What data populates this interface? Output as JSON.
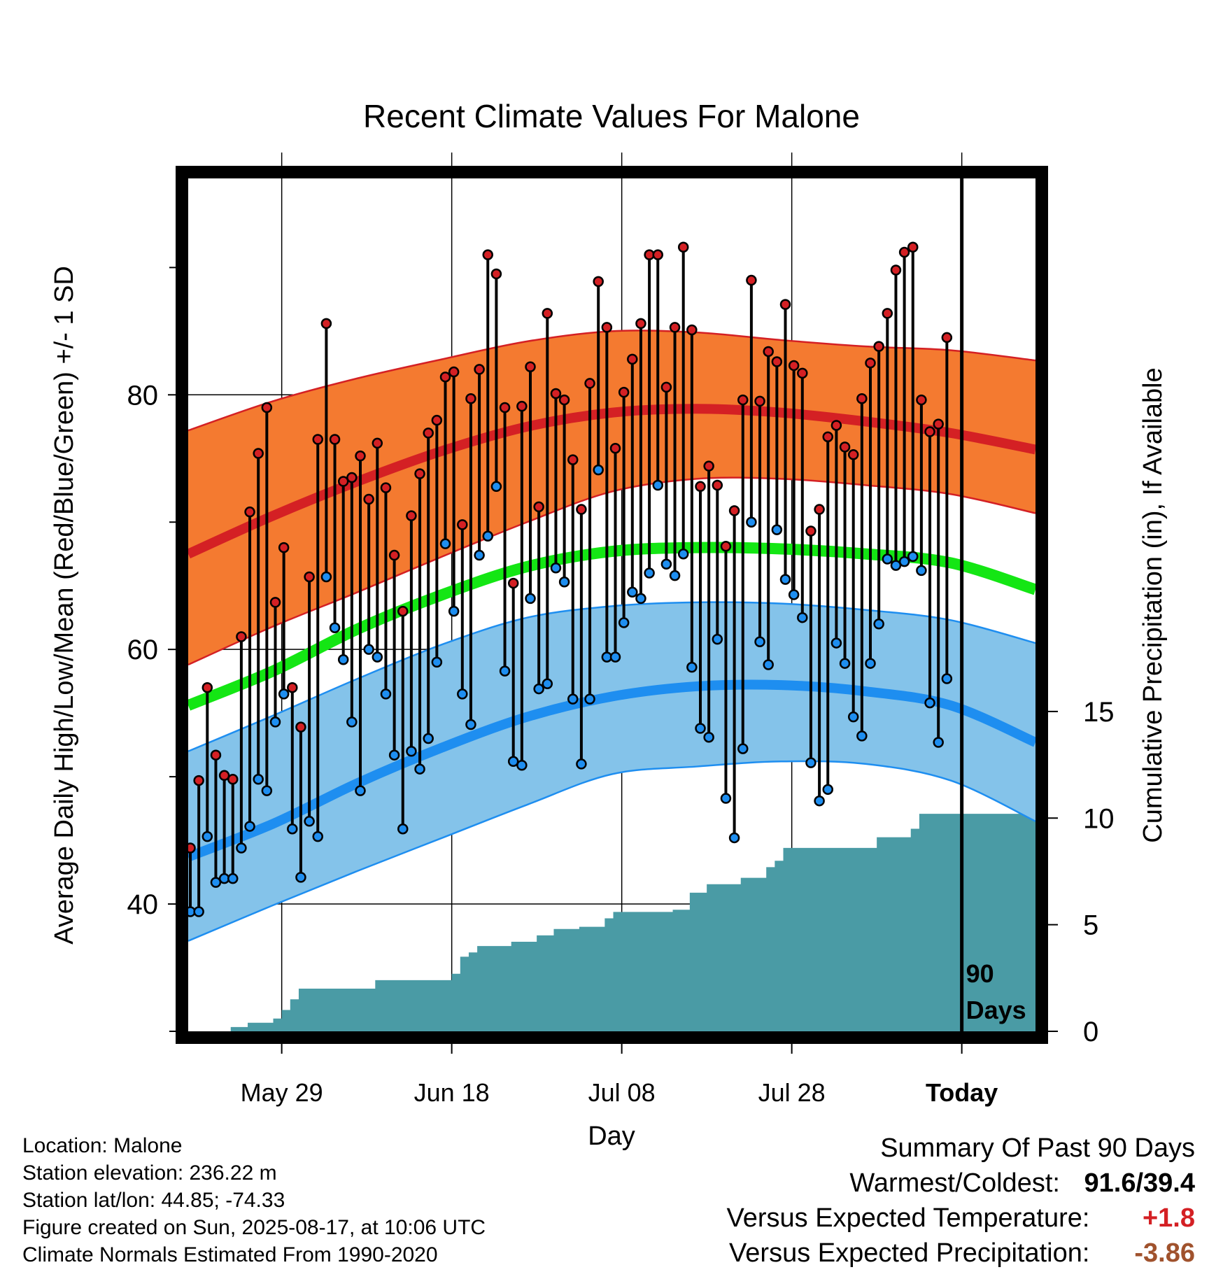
{
  "title": "Recent Climate Values For Malone",
  "y_left_label": "Average Daily High/Low/Mean (Red/Blue/Green) +/- 1 SD",
  "y_right_label": "Cumulative Precipitation (in), If Available",
  "x_label": "Day",
  "annotation": {
    "line1": "90",
    "line2": "Days"
  },
  "info": [
    "Location: Malone",
    "Station elevation: 236.22 m",
    "Station lat/lon: 44.85; -74.33",
    "Figure created on Sun, 2025-08-17, at 10:06 UTC",
    "Climate Normals Estimated From 1990-2020"
  ],
  "summary": {
    "heading": "Summary Of Past 90 Days",
    "warm_cold_label": "Warmest/Coldest:",
    "warm_cold_value": "91.6/39.4",
    "temp_label": "Versus Expected Temperature:",
    "temp_value": "+1.8",
    "precip_label": "Versus Expected Precipitation:",
    "precip_value": "-3.86"
  },
  "colors": {
    "high_band": "#f47a30",
    "high_line": "#d42024",
    "low_band": "#84c3ea",
    "low_line": "#1e8ef0",
    "mean_line": "#14e614",
    "precip": "#4a9ba5",
    "temp_value": "#d42024",
    "precip_value": "#a0522d"
  },
  "chart_data": {
    "type": "line",
    "x_ticks": [
      {
        "day": 11,
        "label": "May 29"
      },
      {
        "day": 31,
        "label": "Jun 18"
      },
      {
        "day": 51,
        "label": "Jul 08"
      },
      {
        "day": 71,
        "label": "Jul 28"
      },
      {
        "day": 91,
        "label": "Today"
      }
    ],
    "xlim": [
      0,
      100
    ],
    "ylim_left": [
      30,
      97
    ],
    "y_left_ticks": [
      40,
      60,
      80
    ],
    "y_left_minor_ticks": [
      30,
      50,
      70,
      90
    ],
    "ylim_right": [
      0,
      40
    ],
    "y_right_ticks": [
      0,
      5,
      10,
      15
    ],
    "grid": true,
    "today_day": 91,
    "normals": {
      "days": [
        0,
        10,
        20,
        30,
        40,
        50,
        60,
        70,
        80,
        90,
        100
      ],
      "high_mean": [
        67.5,
        70.5,
        73.2,
        75.6,
        77.5,
        78.6,
        78.9,
        78.6,
        77.9,
        77.0,
        75.7
      ],
      "high_upper": [
        77.2,
        79.5,
        81.3,
        82.8,
        84.2,
        85.0,
        84.9,
        84.3,
        83.8,
        83.5,
        82.7
      ],
      "high_lower": [
        58.8,
        61.8,
        64.5,
        67.3,
        70.0,
        72.4,
        73.4,
        73.4,
        72.9,
        72.2,
        70.7
      ],
      "mean": [
        55.6,
        58.3,
        61.6,
        64.3,
        66.5,
        67.7,
        68.0,
        67.9,
        67.5,
        66.8,
        64.7
      ],
      "low_mean": [
        43.7,
        46.3,
        49.5,
        52.3,
        54.7,
        56.3,
        57.1,
        57.2,
        56.7,
        55.6,
        52.7
      ],
      "low_upper": [
        52.0,
        54.8,
        57.7,
        60.4,
        62.5,
        63.4,
        63.7,
        63.6,
        63.1,
        62.3,
        60.5
      ],
      "low_lower": [
        37.1,
        39.9,
        42.6,
        45.2,
        47.8,
        50.2,
        50.8,
        51.2,
        51.0,
        49.7,
        46.5
      ]
    },
    "daily": [
      {
        "day": 0,
        "high": 44.4,
        "low": 39.4
      },
      {
        "day": 1,
        "high": 49.7,
        "low": 39.4
      },
      {
        "day": 2,
        "high": 57.0,
        "low": 45.3
      },
      {
        "day": 3,
        "high": 51.7,
        "low": 41.7
      },
      {
        "day": 4,
        "high": 50.1,
        "low": 42.0
      },
      {
        "day": 5,
        "high": 49.8,
        "low": 42.0
      },
      {
        "day": 6,
        "high": 61.0,
        "low": 44.4
      },
      {
        "day": 7,
        "high": 70.8,
        "low": 46.1
      },
      {
        "day": 8,
        "high": 75.4,
        "low": 49.8
      },
      {
        "day": 9,
        "high": 79.0,
        "low": 48.9
      },
      {
        "day": 10,
        "high": 63.7,
        "low": 54.3
      },
      {
        "day": 11,
        "high": 68.0,
        "low": 56.5
      },
      {
        "day": 12,
        "high": 57.0,
        "low": 45.9
      },
      {
        "day": 13,
        "high": 53.9,
        "low": 42.1
      },
      {
        "day": 14,
        "high": 65.7,
        "low": 46.5
      },
      {
        "day": 15,
        "high": 76.5,
        "low": 45.3
      },
      {
        "day": 16,
        "high": 85.6,
        "low": 65.7
      },
      {
        "day": 17,
        "high": 76.5,
        "low": 61.7
      },
      {
        "day": 18,
        "high": 73.2,
        "low": 59.2
      },
      {
        "day": 19,
        "high": 73.5,
        "low": 54.3
      },
      {
        "day": 20,
        "high": 75.2,
        "low": 48.9
      },
      {
        "day": 21,
        "high": 71.8,
        "low": 60.0
      },
      {
        "day": 22,
        "high": 76.2,
        "low": 59.4
      },
      {
        "day": 23,
        "high": 72.7,
        "low": 56.5
      },
      {
        "day": 24,
        "high": 67.4,
        "low": 51.7
      },
      {
        "day": 25,
        "high": 63.0,
        "low": 45.9
      },
      {
        "day": 26,
        "high": 70.5,
        "low": 52.0
      },
      {
        "day": 27,
        "high": 73.8,
        "low": 50.6
      },
      {
        "day": 28,
        "high": 77.0,
        "low": 53.0
      },
      {
        "day": 29,
        "high": 78.0,
        "low": 59.0
      },
      {
        "day": 30,
        "high": 81.4,
        "low": 68.3
      },
      {
        "day": 31,
        "high": 81.8,
        "low": 63.0
      },
      {
        "day": 32,
        "high": 69.8,
        "low": 56.5
      },
      {
        "day": 33,
        "high": 79.7,
        "low": 54.1
      },
      {
        "day": 34,
        "high": 82.0,
        "low": 67.4
      },
      {
        "day": 35,
        "high": 91.0,
        "low": 68.9
      },
      {
        "day": 36,
        "high": 89.5,
        "low": 72.8
      },
      {
        "day": 37,
        "high": 79.0,
        "low": 58.3
      },
      {
        "day": 38,
        "high": 65.2,
        "low": 51.2
      },
      {
        "day": 39,
        "high": 79.1,
        "low": 50.9
      },
      {
        "day": 40,
        "high": 82.2,
        "low": 64.0
      },
      {
        "day": 41,
        "high": 71.2,
        "low": 56.9
      },
      {
        "day": 42,
        "high": 86.4,
        "low": 57.3
      },
      {
        "day": 43,
        "high": 80.1,
        "low": 66.4
      },
      {
        "day": 44,
        "high": 79.6,
        "low": 65.3
      },
      {
        "day": 45,
        "high": 74.9,
        "low": 56.1
      },
      {
        "day": 46,
        "high": 71.0,
        "low": 51.0
      },
      {
        "day": 47,
        "high": 80.9,
        "low": 56.1
      },
      {
        "day": 48,
        "high": 88.9,
        "low": 74.1
      },
      {
        "day": 49,
        "high": 85.3,
        "low": 59.4
      },
      {
        "day": 50,
        "high": 75.8,
        "low": 59.4
      },
      {
        "day": 51,
        "high": 80.2,
        "low": 62.1
      },
      {
        "day": 52,
        "high": 82.8,
        "low": 64.5
      },
      {
        "day": 53,
        "high": 85.6,
        "low": 64.0
      },
      {
        "day": 54,
        "high": 91.0,
        "low": 66.0
      },
      {
        "day": 55,
        "high": 91.0,
        "low": 72.9
      },
      {
        "day": 56,
        "high": 80.6,
        "low": 66.7
      },
      {
        "day": 57,
        "high": 85.3,
        "low": 65.8
      },
      {
        "day": 58,
        "high": 91.6,
        "low": 67.5
      },
      {
        "day": 59,
        "high": 85.1,
        "low": 58.6
      },
      {
        "day": 60,
        "high": 72.8,
        "low": 53.8
      },
      {
        "day": 61,
        "high": 74.4,
        "low": 53.1
      },
      {
        "day": 62,
        "high": 72.9,
        "low": 60.8
      },
      {
        "day": 63,
        "high": 68.1,
        "low": 48.3
      },
      {
        "day": 64,
        "high": 70.9,
        "low": 45.2
      },
      {
        "day": 65,
        "high": 79.6,
        "low": 52.2
      },
      {
        "day": 66,
        "high": 89.0,
        "low": 70.0
      },
      {
        "day": 67,
        "high": 79.5,
        "low": 60.6
      },
      {
        "day": 68,
        "high": 83.4,
        "low": 58.8
      },
      {
        "day": 69,
        "high": 82.6,
        "low": 69.4
      },
      {
        "day": 70,
        "high": 87.1,
        "low": 65.5
      },
      {
        "day": 71,
        "high": 82.3,
        "low": 64.3
      },
      {
        "day": 72,
        "high": 81.7,
        "low": 62.5
      },
      {
        "day": 73,
        "high": 69.3,
        "low": 51.1
      },
      {
        "day": 74,
        "high": 71.0,
        "low": 48.1
      },
      {
        "day": 75,
        "high": 76.7,
        "low": 49.0
      },
      {
        "day": 76,
        "high": 77.6,
        "low": 60.5
      },
      {
        "day": 77,
        "high": 75.9,
        "low": 58.9
      },
      {
        "day": 78,
        "high": 75.3,
        "low": 54.7
      },
      {
        "day": 79,
        "high": 79.7,
        "low": 53.2
      },
      {
        "day": 80,
        "high": 82.5,
        "low": 58.9
      },
      {
        "day": 81,
        "high": 83.8,
        "low": 62.0
      },
      {
        "day": 82,
        "high": 86.4,
        "low": 67.1
      },
      {
        "day": 83,
        "high": 89.8,
        "low": 66.6
      },
      {
        "day": 84,
        "high": 91.2,
        "low": 66.9
      },
      {
        "day": 85,
        "high": 91.6,
        "low": 67.3
      },
      {
        "day": 86,
        "high": 79.6,
        "low": 66.2
      },
      {
        "day": 87,
        "high": 77.1,
        "low": 55.8
      },
      {
        "day": 88,
        "high": 77.7,
        "low": 52.7
      },
      {
        "day": 89,
        "high": 84.5,
        "low": 57.7
      }
    ],
    "precip_steps": [
      [
        0,
        0
      ],
      [
        5,
        0.2
      ],
      [
        7,
        0.4
      ],
      [
        10,
        0.6
      ],
      [
        11,
        1.0
      ],
      [
        12,
        1.5
      ],
      [
        13,
        2.0
      ],
      [
        22,
        2.4
      ],
      [
        31,
        2.7
      ],
      [
        32,
        3.5
      ],
      [
        33,
        3.7
      ],
      [
        34,
        4.0
      ],
      [
        38,
        4.2
      ],
      [
        41,
        4.5
      ],
      [
        43,
        4.8
      ],
      [
        46,
        4.9
      ],
      [
        49,
        5.3
      ],
      [
        50,
        5.6
      ],
      [
        57,
        5.7
      ],
      [
        59,
        6.5
      ],
      [
        61,
        6.9
      ],
      [
        65,
        7.2
      ],
      [
        68,
        7.7
      ],
      [
        69,
        8.0
      ],
      [
        70,
        8.6
      ],
      [
        81,
        9.1
      ],
      [
        85,
        9.5
      ],
      [
        86,
        10.2
      ],
      [
        100,
        10.2
      ]
    ]
  }
}
